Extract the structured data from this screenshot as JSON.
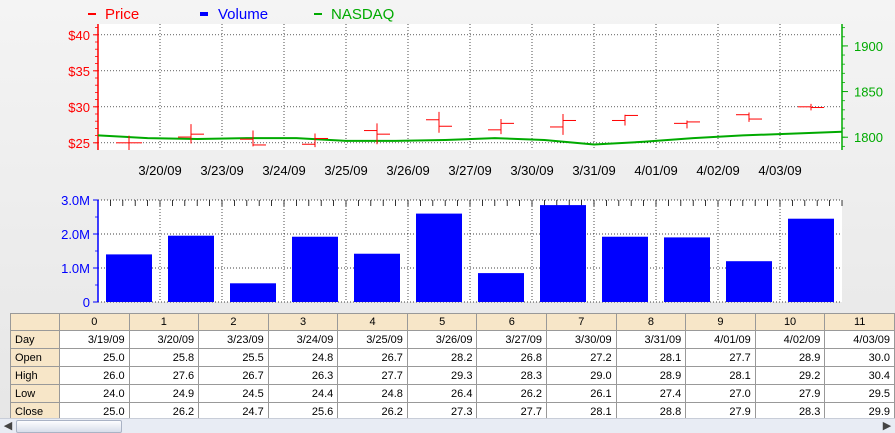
{
  "legend": [
    {
      "label": "Price",
      "color": "#ff0000"
    },
    {
      "label": "Volume",
      "color": "#0000ff"
    },
    {
      "label": "NASDAQ",
      "color": "#00aa00"
    }
  ],
  "chart_data": [
    {
      "type": "candlestick",
      "dates": [
        "3/19/09",
        "3/20/09",
        "3/23/09",
        "3/24/09",
        "3/25/09",
        "3/26/09",
        "3/27/09",
        "3/30/09",
        "3/31/09",
        "4/01/09",
        "4/02/09",
        "4/03/09"
      ],
      "x_tick_labels": [
        "3/20/09",
        "3/23/09",
        "3/24/09",
        "3/25/09",
        "3/26/09",
        "3/27/09",
        "3/30/09",
        "3/31/09",
        "4/01/09",
        "4/02/09",
        "4/03/09"
      ],
      "price": {
        "open": [
          25.0,
          25.8,
          25.5,
          24.8,
          26.7,
          28.2,
          26.8,
          27.2,
          28.1,
          27.7,
          28.9,
          30.0
        ],
        "high": [
          26.0,
          27.6,
          26.7,
          26.3,
          27.7,
          29.3,
          28.3,
          29.0,
          28.9,
          28.1,
          29.2,
          30.4
        ],
        "low": [
          24.0,
          24.9,
          24.5,
          24.4,
          24.8,
          26.4,
          26.2,
          26.1,
          27.4,
          27.0,
          27.9,
          29.5
        ],
        "close": [
          25.0,
          26.2,
          24.7,
          25.6,
          26.2,
          27.3,
          27.7,
          28.1,
          28.8,
          27.9,
          28.3,
          29.9
        ]
      },
      "y_left": {
        "ticks": [
          "$25",
          "$30",
          "$35",
          "$40"
        ],
        "range": [
          24,
          41.5
        ]
      },
      "nasdaq": {
        "values": [
          1802,
          1799,
          1798,
          1799,
          1799,
          1796,
          1796,
          1797,
          1799,
          1797,
          1792,
          1795,
          1799,
          1802,
          1804,
          1806
        ],
        "ticks": [
          "1800",
          "1850",
          "1900"
        ],
        "range": [
          1786,
          1924
        ]
      }
    },
    {
      "type": "bar",
      "series_name": "Volume",
      "values": [
        1.4,
        1.95,
        0.55,
        1.92,
        1.42,
        2.6,
        0.85,
        2.85,
        1.92,
        1.9,
        1.2,
        2.45
      ],
      "y_ticks": [
        "0",
        "1.0M",
        "2.0M",
        "3.0M"
      ],
      "y_range": [
        0,
        3.0
      ]
    }
  ],
  "table": {
    "columns": [
      "0",
      "1",
      "2",
      "3",
      "4",
      "5",
      "6",
      "7",
      "8",
      "9",
      "10",
      "11"
    ],
    "rows": [
      {
        "label": "Day",
        "values": [
          "3/19/09",
          "3/20/09",
          "3/23/09",
          "3/24/09",
          "3/25/09",
          "3/26/09",
          "3/27/09",
          "3/30/09",
          "3/31/09",
          "4/01/09",
          "4/02/09",
          "4/03/09"
        ]
      },
      {
        "label": "Open",
        "values": [
          "25.0",
          "25.8",
          "25.5",
          "24.8",
          "26.7",
          "28.2",
          "26.8",
          "27.2",
          "28.1",
          "27.7",
          "28.9",
          "30.0"
        ]
      },
      {
        "label": "High",
        "values": [
          "26.0",
          "27.6",
          "26.7",
          "26.3",
          "27.7",
          "29.3",
          "28.3",
          "29.0",
          "28.9",
          "28.1",
          "29.2",
          "30.4"
        ]
      },
      {
        "label": "Low",
        "values": [
          "24.0",
          "24.9",
          "24.5",
          "24.4",
          "24.8",
          "26.4",
          "26.2",
          "26.1",
          "27.4",
          "27.0",
          "27.9",
          "29.5"
        ]
      },
      {
        "label": "Close",
        "values": [
          "25.0",
          "26.2",
          "24.7",
          "25.6",
          "26.2",
          "27.3",
          "27.7",
          "28.1",
          "28.8",
          "27.9",
          "28.3",
          "29.9"
        ]
      }
    ]
  },
  "scrollbar": {
    "left_icon": "chevron-left",
    "right_icon": "chevron-right"
  }
}
